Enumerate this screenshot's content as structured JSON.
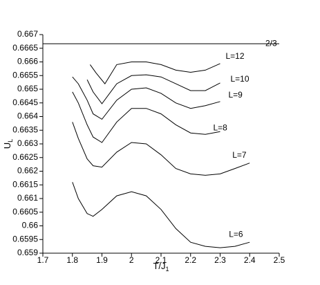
{
  "chart_data": {
    "type": "line",
    "xlabel": "T/J",
    "xlabel_sub": "1",
    "ylabel": "U",
    "ylabel_sub": "L",
    "xlim": [
      1.7,
      2.5
    ],
    "xticks": [
      1.7,
      1.8,
      1.9,
      2,
      2.1,
      2.2,
      2.3,
      2.4,
      2.5
    ],
    "ylim": [
      0.659,
      0.667
    ],
    "yticks": [
      0.659,
      0.6595,
      0.66,
      0.6605,
      0.661,
      0.6615,
      0.662,
      0.6625,
      0.663,
      0.6635,
      0.664,
      0.6645,
      0.665,
      0.6655,
      0.666,
      0.6665,
      0.667
    ],
    "series": [
      {
        "name": "2/3",
        "color": "#000000",
        "x": [
          1.7,
          2.5
        ],
        "values": [
          0.666667,
          0.666667
        ]
      },
      {
        "name": "L=12",
        "color": "#000000",
        "x": [
          1.86,
          1.88,
          1.91,
          1.95,
          2.0,
          2.05,
          2.1,
          2.15,
          2.2,
          2.25,
          2.3
        ],
        "values": [
          0.6659,
          0.6656,
          0.6652,
          0.6659,
          0.666,
          0.666,
          0.6659,
          0.6657,
          0.66562,
          0.6657,
          0.66594
        ]
      },
      {
        "name": "L=10",
        "color": "#000000",
        "x": [
          1.85,
          1.87,
          1.9,
          1.95,
          2.0,
          2.05,
          2.1,
          2.15,
          2.2,
          2.25,
          2.3
        ],
        "values": [
          0.66535,
          0.6649,
          0.66447,
          0.6652,
          0.6655,
          0.66553,
          0.66545,
          0.6652,
          0.66495,
          0.66495,
          0.66523
        ]
      },
      {
        "name": "L=9",
        "color": "#000000",
        "x": [
          1.8,
          1.82,
          1.85,
          1.87,
          1.9,
          1.95,
          2.0,
          2.05,
          2.1,
          2.15,
          2.2,
          2.25,
          2.3
        ],
        "values": [
          0.66545,
          0.6652,
          0.6646,
          0.6641,
          0.6639,
          0.6646,
          0.665,
          0.66505,
          0.66485,
          0.6645,
          0.6643,
          0.6644,
          0.66455
        ]
      },
      {
        "name": "L=8",
        "color": "#000000",
        "x": [
          1.8,
          1.82,
          1.85,
          1.87,
          1.9,
          1.95,
          2.0,
          2.05,
          2.1,
          2.15,
          2.2,
          2.25,
          2.3
        ],
        "values": [
          0.6649,
          0.6645,
          0.6637,
          0.66325,
          0.66305,
          0.6638,
          0.6643,
          0.6643,
          0.6641,
          0.6637,
          0.6634,
          0.66335,
          0.66345
        ]
      },
      {
        "name": "L=7",
        "color": "#000000",
        "x": [
          1.8,
          1.82,
          1.85,
          1.87,
          1.9,
          1.95,
          2.0,
          2.05,
          2.1,
          2.15,
          2.2,
          2.25,
          2.3,
          2.35,
          2.4
        ],
        "values": [
          0.6638,
          0.6632,
          0.66245,
          0.6622,
          0.66215,
          0.6627,
          0.66305,
          0.663,
          0.6626,
          0.6621,
          0.6619,
          0.66185,
          0.6619,
          0.6621,
          0.6623
        ]
      },
      {
        "name": "L=6",
        "color": "#000000",
        "x": [
          1.8,
          1.82,
          1.85,
          1.87,
          1.9,
          1.95,
          2.0,
          2.05,
          2.1,
          2.15,
          2.2,
          2.25,
          2.3,
          2.35,
          2.4
        ],
        "values": [
          0.6616,
          0.661,
          0.66045,
          0.66035,
          0.6606,
          0.6611,
          0.66125,
          0.6611,
          0.6606,
          0.6599,
          0.6594,
          0.65925,
          0.6592,
          0.65925,
          0.6594
        ]
      }
    ]
  }
}
